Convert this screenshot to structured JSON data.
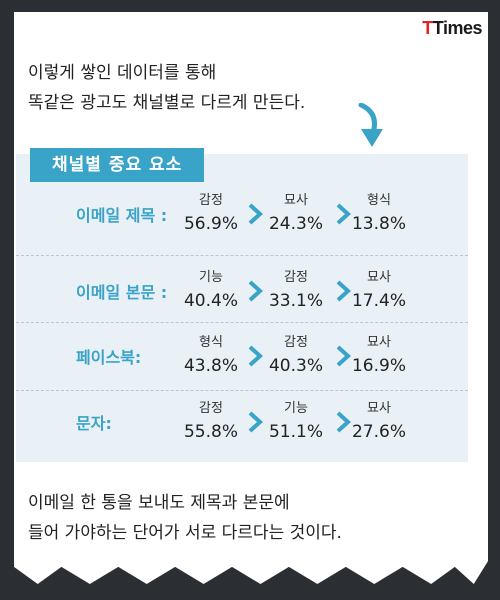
{
  "logo": {
    "t1": "T",
    "rest": "Times"
  },
  "intro": {
    "line1": "이렇게 쌓인 데이터를 통해",
    "line2": "똑같은 광고도 채널별로 다르게 만든다."
  },
  "section_title": "채널별 중요 요소",
  "rows": [
    {
      "label": "이메일 제목 :",
      "items": [
        {
          "type": "감정",
          "value": "56.9%"
        },
        {
          "type": "묘사",
          "value": "24.3%"
        },
        {
          "type": "형식",
          "value": "13.8%"
        }
      ]
    },
    {
      "label": "이메일 본문 :",
      "items": [
        {
          "type": "기능",
          "value": "40.4%"
        },
        {
          "type": "감정",
          "value": "33.1%"
        },
        {
          "type": "묘사",
          "value": "17.4%"
        }
      ]
    },
    {
      "label": "페이스북:",
      "items": [
        {
          "type": "형식",
          "value": "43.8%"
        },
        {
          "type": "감정",
          "value": "40.3%"
        },
        {
          "type": "묘사",
          "value": "16.9%"
        }
      ]
    },
    {
      "label": "문자:",
      "items": [
        {
          "type": "감정",
          "value": "55.8%"
        },
        {
          "type": "기능",
          "value": "51.1%"
        },
        {
          "type": "묘사",
          "value": "27.6%"
        }
      ]
    }
  ],
  "outro": {
    "line1": "이메일 한 통을 보내도 제목과 본문에",
    "line2": "들어 가야하는 단어가 서로 다르다는 것이다."
  },
  "colors": {
    "accent": "#3aa3c8",
    "panel": "#e9f0f6",
    "background": "#2b2e33",
    "logo_red": "#e02424"
  }
}
